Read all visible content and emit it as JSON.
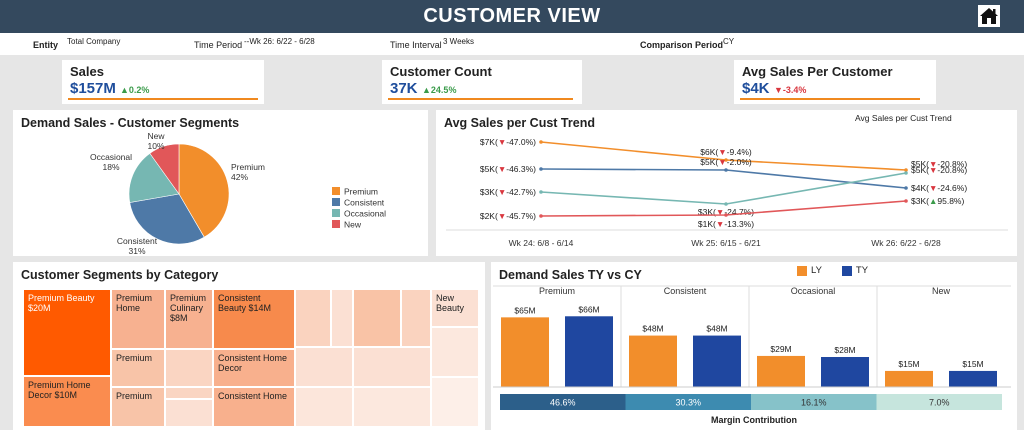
{
  "header": {
    "title": "CUSTOMER VIEW",
    "home_icon": "home-icon"
  },
  "filters": {
    "entity_label": "Entity",
    "entity_value": "Total Company",
    "time_period_label": "Time Period",
    "time_period_value": "--Wk 26: 6/22 - 6/28",
    "time_interval_label": "Time Interval",
    "time_interval_value": "3 Weeks",
    "comparison_label": "Comparison Period",
    "comparison_value": "CY"
  },
  "kpis": {
    "sales": {
      "title": "Sales",
      "value": "$157M",
      "change": "0.2%",
      "dir": "up"
    },
    "customer_count": {
      "title": "Customer Count",
      "value": "37K",
      "change": "24.5%",
      "dir": "up"
    },
    "avg_sales": {
      "title": "Avg Sales Per Customer",
      "value": "$4K",
      "change": "-3.4%",
      "dir": "down"
    }
  },
  "pie": {
    "title": "Demand Sales - Customer Segments",
    "legend": [
      "Premium",
      "Consistent",
      "Occasional",
      "New"
    ],
    "colors": {
      "Premium": "#f28e2b",
      "Consistent": "#4e79a7",
      "Occasional": "#76b7b2",
      "New": "#e15759"
    }
  },
  "trend": {
    "title": "Avg Sales per Cust Trend",
    "legend_label": "Avg Sales per Cust Trend",
    "colors": {
      "Premium": "#f28e2b",
      "Consistent": "#4e79a7",
      "Occasional": "#76b7b2",
      "New": "#e15759"
    }
  },
  "treemap": {
    "title": "Customer Segments by Category",
    "cells": {
      "premium_beauty": "Premium Beauty $20M",
      "premium_home_decor": "Premium Home Decor $10M",
      "premium_home": "Premium Home",
      "premium_culinary": "Premium Culinary $8M",
      "premium_2": "Premium",
      "premium_3": "Premium",
      "consistent_beauty": "Consistent Beauty $14M",
      "consistent_home_decor": "Consistent Home Decor",
      "consistent_home": "Consistent Home",
      "new_beauty": "New Beauty"
    }
  },
  "bars": {
    "title": "Demand Sales TY vs CY",
    "legend": {
      "ly": "LY",
      "ty": "TY"
    },
    "colors": {
      "ly": "#f28e2b",
      "ty": "#1f47a0"
    },
    "margin_title": "Margin Contribution",
    "margin": [
      {
        "label": "46.6%",
        "color": "#2c5f8a"
      },
      {
        "label": "30.3%",
        "color": "#3d8bb0"
      },
      {
        "label": "16.1%",
        "color": "#86c2c9"
      },
      {
        "label": "7.0%",
        "color": "#c6e5dd"
      }
    ]
  },
  "chart_data": [
    {
      "type": "pie",
      "title": "Demand Sales - Customer Segments",
      "categories": [
        "Premium",
        "Consistent",
        "Occasional",
        "New"
      ],
      "values": [
        42,
        31,
        18,
        10
      ],
      "labels": [
        "Premium\n42%",
        "Consistent\n31%",
        "Occasional\n18%",
        "New\n10%"
      ]
    },
    {
      "type": "line",
      "title": "Avg Sales per Cust Trend",
      "categories": [
        "Wk 24: 6/8 - 6/14",
        "Wk 25: 6/15 - 6/21",
        "Wk 26: 6/22 - 6/28"
      ],
      "series": [
        {
          "name": "Premium",
          "values": [
            7,
            6,
            5
          ],
          "labels": [
            {
              "v": "$7K(",
              "c": "-47.0%)",
              "d": "down"
            },
            {
              "v": "$6K(",
              "c": "-9.4%)",
              "d": "down"
            },
            {
              "v": "$5K(",
              "c": "-20.8%)",
              "d": "down"
            }
          ]
        },
        {
          "name": "Consistent",
          "values": [
            5,
            5,
            4
          ],
          "labels": [
            {
              "v": "$5K(",
              "c": "-46.3%)",
              "d": "down"
            },
            {
              "v": "$5K(",
              "c": "-2.0%)",
              "d": "down"
            },
            {
              "v": "$4K(",
              "c": "-24.6%)",
              "d": "down"
            }
          ]
        },
        {
          "name": "Occasional",
          "values": [
            3,
            3,
            5
          ],
          "labels": [
            {
              "v": "$3K(",
              "c": "-42.7%)",
              "d": "down"
            },
            {
              "v": "$3K(",
              "c": "-24.7%)",
              "d": "down"
            },
            {
              "v": "$5K(",
              "c": "-20.8%)",
              "d": "down"
            }
          ]
        },
        {
          "name": "New",
          "values": [
            2,
            1,
            3
          ],
          "labels": [
            {
              "v": "$2K(",
              "c": "-45.7%)",
              "d": "down"
            },
            {
              "v": "$1K(",
              "c": "-13.3%)",
              "d": "down"
            },
            {
              "v": "$3K(",
              "c": "95.8%)",
              "d": "up"
            }
          ]
        }
      ]
    },
    {
      "type": "bar",
      "title": "Demand Sales TY vs CY",
      "categories": [
        "Premium",
        "Consistent",
        "Occasional",
        "New"
      ],
      "series": [
        {
          "name": "LY",
          "values": [
            65,
            48,
            29,
            15
          ],
          "labels": [
            "$65M",
            "$48M",
            "$29M",
            "$15M"
          ]
        },
        {
          "name": "TY",
          "values": [
            66,
            48,
            28,
            15
          ],
          "labels": [
            "$66M",
            "$48M",
            "$28M",
            "$15M"
          ]
        }
      ],
      "ylim": [
        0,
        70
      ]
    }
  ]
}
